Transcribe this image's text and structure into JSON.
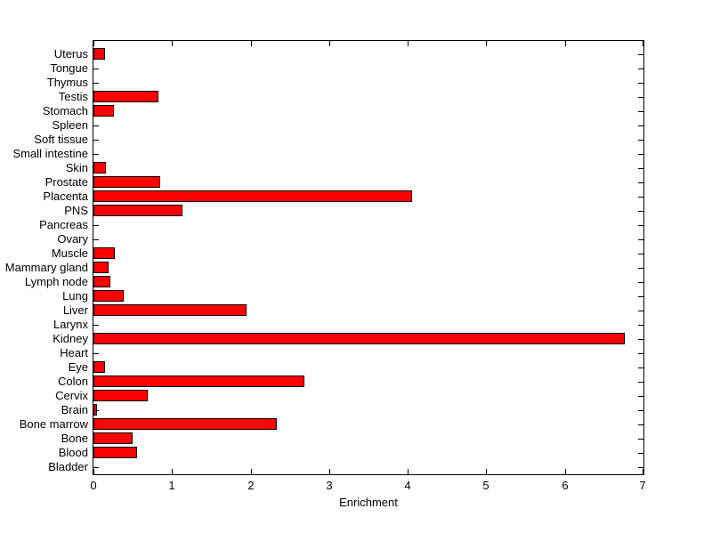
{
  "figure": {
    "background_color": "#FFFFFF",
    "plot_background_color": "#FFFFFF",
    "axis_color": "#000000",
    "text_color": "#000000"
  },
  "chart_data": {
    "type": "bar",
    "orientation": "horizontal",
    "title": "",
    "xlabel": "Enrichment",
    "ylabel": "",
    "category_order": "top-to-bottom",
    "categories": [
      "Uterus",
      "Tongue",
      "Thymus",
      "Testis",
      "Stomach",
      "Spleen",
      "Soft tissue",
      "Small intestine",
      "Skin",
      "Prostate",
      "Placenta",
      "PNS",
      "Pancreas",
      "Ovary",
      "Muscle",
      "Mammary gland",
      "Lymph node",
      "Lung",
      "Liver",
      "Larynx",
      "Kidney",
      "Heart",
      "Eye",
      "Colon",
      "Cervix",
      "Brain",
      "Bone marrow",
      "Bone",
      "Blood",
      "Bladder"
    ],
    "values": [
      0.15,
      0,
      0,
      0.83,
      0.26,
      0,
      0,
      0,
      0.16,
      0.85,
      4.05,
      1.13,
      0,
      0,
      0.27,
      0.19,
      0.21,
      0.38,
      1.95,
      0,
      6.76,
      0,
      0.15,
      2.68,
      0.69,
      0.05,
      2.33,
      0.5,
      0.55,
      0
    ],
    "xlim": [
      0,
      7
    ],
    "xticks": [
      "0",
      "1",
      "2",
      "3",
      "4",
      "5",
      "6",
      "7"
    ],
    "grid": false,
    "legend": null,
    "bar_color": "#FF0000",
    "bar_edge_color": "#000000"
  }
}
